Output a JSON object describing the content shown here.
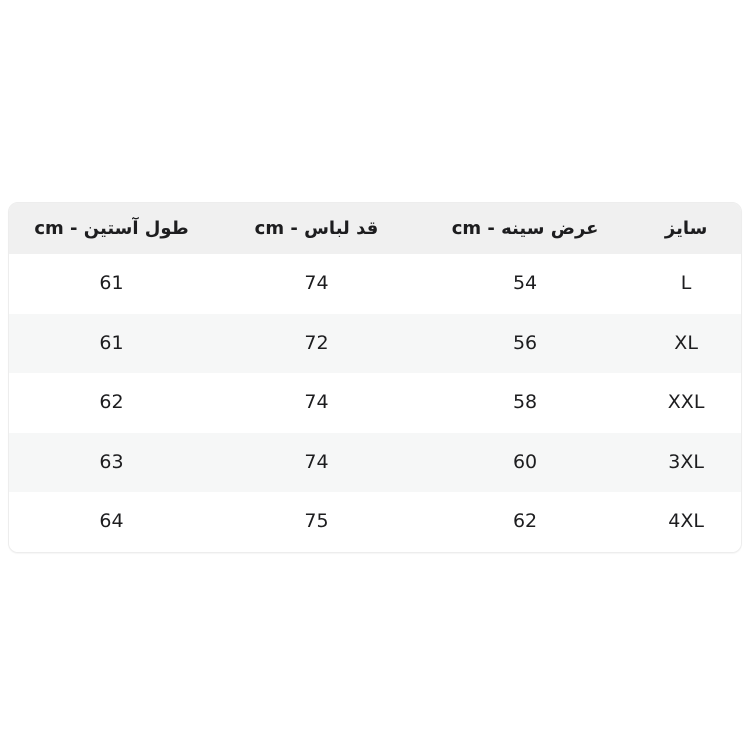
{
  "table": {
    "columns": [
      {
        "key": "size",
        "label": "سایز"
      },
      {
        "key": "chest",
        "label": "عرض سینه - cm"
      },
      {
        "key": "length",
        "label": "قد لباس - cm"
      },
      {
        "key": "sleeve",
        "label": "طول آستین - cm"
      }
    ],
    "rows": [
      {
        "size": "L",
        "chest": "54",
        "length": "74",
        "sleeve": "61"
      },
      {
        "size": "XL",
        "chest": "56",
        "length": "72",
        "sleeve": "61"
      },
      {
        "size": "XXL",
        "chest": "58",
        "length": "74",
        "sleeve": "62"
      },
      {
        "size": "3XL",
        "chest": "60",
        "length": "74",
        "sleeve": "63"
      },
      {
        "size": "4XL",
        "chest": "62",
        "length": "75",
        "sleeve": "64"
      }
    ],
    "colors": {
      "header_bg": "#f0f0f0",
      "stripe_bg": "#f6f7f7",
      "row_bg": "#ffffff",
      "text": "#1d1d1f",
      "card_border": "#ededed"
    }
  }
}
